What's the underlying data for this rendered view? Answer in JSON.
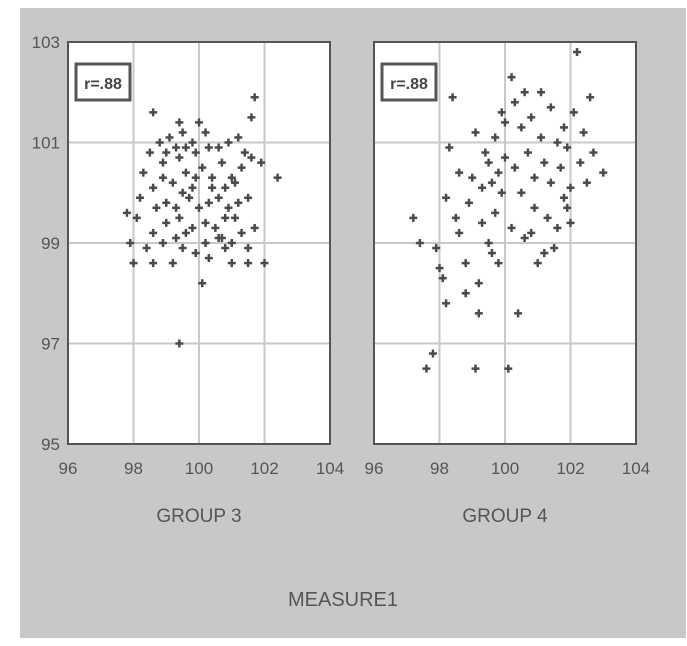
{
  "figure": {
    "xlabel": "MEASURE1",
    "background_color": "#c8c8c8",
    "panel_color": "#ffffff",
    "grid_color": "#c8c8c8",
    "marker_color": "#4a4a4a"
  },
  "chart_data": [
    {
      "type": "scatter",
      "title": "",
      "xlabel": "GROUP 3",
      "ylabel": "",
      "xlim": [
        96,
        104
      ],
      "ylim": [
        95,
        103
      ],
      "xticks": [
        "96",
        "98",
        "100",
        "102",
        "104"
      ],
      "yticks": [
        "95",
        "97",
        "99",
        "101",
        "103"
      ],
      "grid": true,
      "annotation": "r=.88",
      "points": [
        [
          98.0,
          98.6
        ],
        [
          98.6,
          98.6
        ],
        [
          99.2,
          98.6
        ],
        [
          101.0,
          98.6
        ],
        [
          101.5,
          98.6
        ],
        [
          102.0,
          98.6
        ],
        [
          99.4,
          97.0
        ],
        [
          100.1,
          98.2
        ],
        [
          98.6,
          101.6
        ],
        [
          101.7,
          101.9
        ],
        [
          99.4,
          101.4
        ],
        [
          100.0,
          101.4
        ],
        [
          101.6,
          101.5
        ],
        [
          101.9,
          100.6
        ],
        [
          102.4,
          100.3
        ],
        [
          97.8,
          99.6
        ],
        [
          98.1,
          99.5
        ],
        [
          97.9,
          99.0
        ],
        [
          98.4,
          98.9
        ],
        [
          98.6,
          99.2
        ],
        [
          99.0,
          99.4
        ],
        [
          99.3,
          99.1
        ],
        [
          99.6,
          99.2
        ],
        [
          100.2,
          99.0
        ],
        [
          100.6,
          99.1
        ],
        [
          101.0,
          99.0
        ],
        [
          101.3,
          99.2
        ],
        [
          101.7,
          99.3
        ],
        [
          101.5,
          98.9
        ],
        [
          100.8,
          98.9
        ],
        [
          100.3,
          98.7
        ],
        [
          99.9,
          98.8
        ],
        [
          99.5,
          98.9
        ],
        [
          98.9,
          99.0
        ],
        [
          98.3,
          100.4
        ],
        [
          98.6,
          100.1
        ],
        [
          98.9,
          100.6
        ],
        [
          99.2,
          100.2
        ],
        [
          99.4,
          100.7
        ],
        [
          99.6,
          100.4
        ],
        [
          99.8,
          100.1
        ],
        [
          100.1,
          100.5
        ],
        [
          100.4,
          100.1
        ],
        [
          100.7,
          100.6
        ],
        [
          101.0,
          100.3
        ],
        [
          101.3,
          100.5
        ],
        [
          100.8,
          100.1
        ],
        [
          101.1,
          100.2
        ],
        [
          99.0,
          100.8
        ],
        [
          99.3,
          100.9
        ],
        [
          99.6,
          100.9
        ],
        [
          99.9,
          100.8
        ],
        [
          100.3,
          100.9
        ],
        [
          100.6,
          100.9
        ],
        [
          100.9,
          101.0
        ],
        [
          101.2,
          101.1
        ],
        [
          98.8,
          101.0
        ],
        [
          99.1,
          101.1
        ],
        [
          99.5,
          101.2
        ],
        [
          99.8,
          101.0
        ],
        [
          100.2,
          101.2
        ],
        [
          98.5,
          100.8
        ],
        [
          99.0,
          99.8
        ],
        [
          99.3,
          99.7
        ],
        [
          99.7,
          99.9
        ],
        [
          100.0,
          99.7
        ],
        [
          100.3,
          99.8
        ],
        [
          100.6,
          99.9
        ],
        [
          100.9,
          99.7
        ],
        [
          101.2,
          99.8
        ],
        [
          101.5,
          99.9
        ],
        [
          98.7,
          99.7
        ],
        [
          99.4,
          99.5
        ],
        [
          99.8,
          99.3
        ],
        [
          100.2,
          99.4
        ],
        [
          100.5,
          99.3
        ],
        [
          100.8,
          99.5
        ],
        [
          101.1,
          99.5
        ],
        [
          99.5,
          100.0
        ],
        [
          99.9,
          100.3
        ],
        [
          100.4,
          100.3
        ],
        [
          98.9,
          100.3
        ],
        [
          101.6,
          100.7
        ],
        [
          101.4,
          100.8
        ],
        [
          98.2,
          99.9
        ],
        [
          100.7,
          99.1
        ]
      ]
    },
    {
      "type": "scatter",
      "title": "",
      "xlabel": "GROUP 4",
      "ylabel": "",
      "xlim": [
        96,
        104
      ],
      "ylim": [
        95,
        103
      ],
      "xticks": [
        "96",
        "98",
        "100",
        "102",
        "104"
      ],
      "yticks": [],
      "grid": true,
      "annotation": "r=.88",
      "points": [
        [
          97.2,
          99.5
        ],
        [
          97.4,
          99.0
        ],
        [
          97.6,
          96.5
        ],
        [
          97.8,
          96.8
        ],
        [
          97.9,
          98.9
        ],
        [
          98.0,
          98.5
        ],
        [
          98.1,
          98.3
        ],
        [
          98.2,
          97.8
        ],
        [
          98.2,
          99.9
        ],
        [
          98.3,
          100.9
        ],
        [
          98.4,
          101.9
        ],
        [
          98.5,
          99.5
        ],
        [
          98.6,
          99.2
        ],
        [
          98.6,
          100.4
        ],
        [
          98.8,
          98.0
        ],
        [
          98.8,
          98.6
        ],
        [
          98.9,
          99.8
        ],
        [
          99.0,
          100.3
        ],
        [
          99.1,
          101.2
        ],
        [
          99.1,
          96.5
        ],
        [
          99.2,
          97.6
        ],
        [
          99.2,
          98.2
        ],
        [
          99.3,
          99.4
        ],
        [
          99.3,
          100.1
        ],
        [
          99.4,
          100.8
        ],
        [
          99.5,
          99.0
        ],
        [
          99.5,
          100.6
        ],
        [
          99.6,
          100.2
        ],
        [
          99.7,
          101.1
        ],
        [
          99.7,
          99.6
        ],
        [
          99.8,
          98.6
        ],
        [
          99.8,
          100.4
        ],
        [
          99.9,
          101.6
        ],
        [
          99.9,
          100.0
        ],
        [
          100.0,
          100.7
        ],
        [
          100.1,
          96.5
        ],
        [
          100.2,
          99.3
        ],
        [
          100.2,
          102.3
        ],
        [
          100.3,
          101.8
        ],
        [
          100.3,
          100.5
        ],
        [
          100.4,
          97.6
        ],
        [
          100.5,
          101.3
        ],
        [
          100.5,
          100.0
        ],
        [
          100.6,
          99.1
        ],
        [
          100.6,
          102.0
        ],
        [
          100.7,
          100.8
        ],
        [
          100.8,
          101.5
        ],
        [
          100.9,
          99.7
        ],
        [
          100.9,
          100.3
        ],
        [
          101.0,
          98.6
        ],
        [
          101.1,
          101.1
        ],
        [
          101.1,
          102.0
        ],
        [
          101.2,
          100.6
        ],
        [
          101.3,
          99.5
        ],
        [
          101.4,
          101.7
        ],
        [
          101.4,
          100.2
        ],
        [
          101.5,
          98.9
        ],
        [
          101.6,
          101.0
        ],
        [
          101.7,
          100.5
        ],
        [
          101.8,
          99.9
        ],
        [
          101.8,
          101.3
        ],
        [
          101.9,
          100.9
        ],
        [
          102.0,
          100.1
        ],
        [
          102.0,
          99.4
        ],
        [
          102.1,
          101.6
        ],
        [
          102.2,
          102.8
        ],
        [
          102.3,
          100.6
        ],
        [
          102.4,
          101.2
        ],
        [
          102.5,
          100.2
        ],
        [
          102.6,
          101.9
        ],
        [
          102.7,
          100.8
        ],
        [
          103.0,
          100.4
        ],
        [
          101.6,
          99.3
        ],
        [
          101.2,
          98.8
        ],
        [
          100.8,
          99.2
        ],
        [
          99.6,
          98.8
        ],
        [
          100.0,
          101.4
        ],
        [
          101.9,
          99.7
        ]
      ]
    }
  ]
}
